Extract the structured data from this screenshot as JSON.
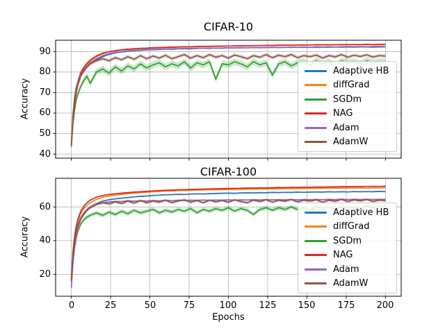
{
  "figure": {
    "background": "#ffffff"
  },
  "chart_data": [
    {
      "type": "line",
      "title": "CIFAR-10",
      "xlabel": "",
      "ylabel": "Accuracy",
      "xlim": [
        -10,
        210
      ],
      "ylim": [
        38,
        95.5
      ],
      "xticks": [
        0,
        25,
        50,
        75,
        100,
        125,
        150,
        175,
        200
      ],
      "yticks": [
        40,
        50,
        60,
        70,
        80,
        90
      ],
      "show_xtick_labels": false,
      "grid": true,
      "legend_position": "center right inside",
      "grid_color": "#b0b0b0",
      "x": [
        0,
        1,
        2,
        3,
        4,
        6,
        8,
        10,
        12,
        16,
        20,
        24,
        28,
        32,
        36,
        40,
        44,
        48,
        52,
        56,
        60,
        64,
        68,
        72,
        76,
        80,
        84,
        88,
        92,
        96,
        100,
        104,
        108,
        112,
        116,
        120,
        124,
        128,
        132,
        136,
        140,
        144,
        148,
        152,
        156,
        160,
        164,
        168,
        172,
        176,
        180,
        184,
        188,
        192,
        196,
        200
      ],
      "series": [
        {
          "name": "Adaptive HB",
          "color": "#1f77b4",
          "band": 0.3,
          "values": [
            44.2,
            57.0,
            65.0,
            70.0,
            73.5,
            78.0,
            80.5,
            82.5,
            84.0,
            86.0,
            87.5,
            88.6,
            89.3,
            89.8,
            90.1,
            90.4,
            90.6,
            90.8,
            90.9,
            91.0,
            91.2,
            91.1,
            91.3,
            91.4,
            91.3,
            91.5,
            91.6,
            91.5,
            91.7,
            91.6,
            91.8,
            91.7,
            91.9,
            91.8,
            92.0,
            91.9,
            92.0,
            92.1,
            92.0,
            92.1,
            92.2,
            92.1,
            92.2,
            92.1,
            92.3,
            92.2,
            92.3,
            92.2,
            92.3,
            92.4,
            92.3,
            92.4,
            92.3,
            92.4,
            92.5,
            92.4
          ]
        },
        {
          "name": "diffGrad",
          "color": "#ff7f0e",
          "band": 0.25,
          "values": [
            44.5,
            59.0,
            67.0,
            72.0,
            75.0,
            80.0,
            82.5,
            84.5,
            86.0,
            88.0,
            89.3,
            90.0,
            90.5,
            90.9,
            91.2,
            91.4,
            91.6,
            91.7,
            91.9,
            92.0,
            92.1,
            92.2,
            92.3,
            92.3,
            92.4,
            92.5,
            92.5,
            92.6,
            92.6,
            92.7,
            92.7,
            92.8,
            92.8,
            92.9,
            92.9,
            92.9,
            93.0,
            93.0,
            93.0,
            93.1,
            93.1,
            93.1,
            93.1,
            93.2,
            93.2,
            93.2,
            93.2,
            93.3,
            93.2,
            93.3,
            93.3,
            93.3,
            93.4,
            93.3,
            93.4,
            93.4
          ]
        },
        {
          "name": "SGDm",
          "color": "#2ca02c",
          "band": 1.6,
          "values": [
            43.8,
            54.0,
            61.0,
            66.0,
            69.0,
            73.0,
            76.0,
            78.0,
            74.5,
            80.0,
            81.5,
            79.5,
            82.5,
            80.5,
            83.0,
            81.5,
            84.0,
            82.0,
            83.5,
            84.5,
            82.5,
            84.0,
            83.0,
            85.0,
            82.0,
            84.5,
            83.5,
            85.0,
            76.5,
            84.0,
            83.5,
            85.0,
            84.0,
            82.5,
            85.0,
            83.5,
            84.5,
            78.5,
            84.0,
            85.0,
            83.0,
            84.5,
            85.0,
            83.5,
            85.5,
            84.0,
            85.0,
            83.0,
            85.5,
            84.5,
            85.0,
            84.0,
            85.5,
            84.5,
            85.0,
            84.8
          ]
        },
        {
          "name": "NAG",
          "color": "#d62728",
          "band": 0.25,
          "values": [
            44.0,
            58.0,
            66.5,
            71.5,
            74.5,
            79.5,
            82.0,
            84.0,
            85.5,
            87.6,
            89.0,
            89.9,
            90.4,
            90.8,
            91.1,
            91.3,
            91.5,
            91.6,
            91.8,
            91.9,
            92.0,
            92.1,
            92.2,
            92.3,
            92.3,
            92.4,
            92.5,
            92.5,
            92.6,
            92.6,
            92.7,
            92.7,
            92.8,
            92.8,
            92.9,
            92.9,
            93.0,
            93.0,
            93.1,
            93.1,
            93.1,
            93.2,
            93.2,
            93.2,
            93.3,
            93.3,
            93.3,
            93.3,
            93.4,
            93.4,
            93.4,
            93.4,
            93.5,
            93.4,
            93.5,
            93.5
          ]
        },
        {
          "name": "Adam",
          "color": "#9467bd",
          "band": 0.3,
          "values": [
            43.5,
            56.0,
            64.5,
            70.0,
            73.5,
            78.5,
            81.0,
            83.0,
            84.5,
            86.5,
            88.0,
            89.0,
            89.6,
            90.0,
            90.4,
            90.6,
            90.8,
            91.0,
            91.1,
            91.2,
            91.3,
            91.4,
            91.4,
            91.5,
            91.5,
            91.6,
            91.6,
            91.7,
            91.6,
            91.7,
            91.8,
            91.7,
            91.8,
            91.8,
            91.9,
            91.8,
            91.9,
            92.0,
            91.9,
            92.0,
            92.0,
            92.1,
            92.0,
            92.1,
            92.0,
            92.1,
            92.1,
            92.2,
            92.1,
            92.2,
            92.1,
            92.2,
            92.2,
            92.1,
            92.2,
            92.2
          ]
        },
        {
          "name": "AdamW",
          "color": "#8c564b",
          "band": 0.9,
          "values": [
            44.0,
            56.5,
            64.0,
            69.5,
            73.0,
            78.0,
            80.5,
            82.5,
            84.0,
            85.5,
            86.5,
            85.5,
            87.0,
            86.0,
            87.5,
            86.2,
            88.0,
            86.5,
            87.8,
            86.8,
            88.2,
            86.5,
            87.5,
            88.5,
            86.8,
            88.0,
            87.0,
            88.5,
            87.2,
            88.0,
            86.8,
            88.3,
            87.5,
            86.5,
            88.0,
            87.2,
            88.5,
            87.0,
            88.2,
            87.5,
            88.5,
            87.0,
            88.0,
            87.5,
            88.3,
            86.8,
            88.0,
            87.4,
            88.5,
            87.2,
            88.2,
            87.6,
            88.4,
            87.3,
            88.0,
            87.8
          ]
        }
      ]
    },
    {
      "type": "line",
      "title": "CIFAR-100",
      "xlabel": "Epochs",
      "ylabel": "Accuracy",
      "xlim": [
        -10,
        210
      ],
      "ylim": [
        7,
        77
      ],
      "xticks": [
        0,
        25,
        50,
        75,
        100,
        125,
        150,
        175,
        200
      ],
      "yticks": [
        20,
        40,
        60
      ],
      "show_xtick_labels": true,
      "grid": true,
      "legend_position": "center right inside",
      "grid_color": "#b0b0b0",
      "x": [
        0,
        1,
        2,
        3,
        4,
        6,
        8,
        10,
        12,
        16,
        20,
        24,
        28,
        32,
        36,
        40,
        44,
        48,
        52,
        56,
        60,
        64,
        68,
        72,
        76,
        80,
        84,
        88,
        92,
        96,
        100,
        104,
        108,
        112,
        116,
        120,
        124,
        128,
        132,
        136,
        140,
        144,
        148,
        152,
        156,
        160,
        164,
        168,
        172,
        176,
        180,
        184,
        188,
        192,
        196,
        200
      ],
      "series": [
        {
          "name": "Adaptive HB",
          "color": "#1f77b4",
          "band": 0.4,
          "values": [
            16.0,
            30.0,
            39.0,
            45.0,
            49.0,
            53.5,
            56.5,
            58.5,
            60.0,
            62.0,
            63.5,
            64.3,
            64.8,
            65.2,
            65.6,
            66.0,
            66.3,
            66.5,
            66.8,
            67.0,
            67.2,
            67.3,
            67.5,
            67.4,
            67.6,
            67.8,
            67.7,
            67.9,
            68.0,
            68.1,
            68.2,
            68.1,
            68.3,
            68.4,
            68.3,
            68.5,
            68.4,
            68.6,
            68.5,
            68.7,
            68.6,
            68.8,
            68.7,
            68.8,
            68.9,
            68.8,
            69.0,
            68.9,
            69.0,
            68.9,
            69.1,
            69.0,
            69.1,
            69.0,
            69.2,
            69.1
          ]
        },
        {
          "name": "diffGrad",
          "color": "#ff7f0e",
          "band": 0.4,
          "values": [
            17.0,
            32.0,
            41.0,
            47.0,
            51.0,
            56.0,
            59.0,
            61.0,
            62.5,
            64.5,
            65.8,
            66.5,
            67.0,
            67.5,
            67.9,
            68.2,
            68.5,
            68.7,
            69.0,
            69.2,
            69.4,
            69.5,
            69.7,
            69.8,
            69.9,
            70.0,
            70.1,
            70.2,
            70.2,
            70.3,
            70.4,
            70.5,
            70.5,
            70.6,
            70.6,
            70.7,
            70.7,
            70.8,
            70.8,
            70.9,
            70.9,
            71.0,
            71.0,
            71.0,
            71.1,
            71.1,
            71.1,
            71.2,
            71.2,
            71.2,
            71.2,
            71.3,
            71.2,
            71.3,
            71.3,
            71.4
          ]
        },
        {
          "name": "SGDm",
          "color": "#2ca02c",
          "band": 1.3,
          "values": [
            15.5,
            27.0,
            35.0,
            41.0,
            45.0,
            50.0,
            52.5,
            54.0,
            55.0,
            56.5,
            55.0,
            57.0,
            55.5,
            57.5,
            56.0,
            58.0,
            56.5,
            57.5,
            58.5,
            56.5,
            58.0,
            57.0,
            58.5,
            57.5,
            59.0,
            56.5,
            58.5,
            57.5,
            59.0,
            58.0,
            59.5,
            57.5,
            59.0,
            58.0,
            55.5,
            58.5,
            59.5,
            58.0,
            59.5,
            58.5,
            60.0,
            58.5,
            59.5,
            58.0,
            60.0,
            59.0,
            60.0,
            58.5,
            60.0,
            59.5,
            60.0,
            59.0,
            60.5,
            59.5,
            60.2,
            60.0
          ]
        },
        {
          "name": "NAG",
          "color": "#d62728",
          "band": 0.3,
          "values": [
            17.5,
            33.0,
            42.0,
            48.0,
            52.0,
            57.5,
            60.5,
            62.5,
            64.0,
            65.8,
            66.8,
            67.4,
            67.8,
            68.2,
            68.5,
            68.8,
            69.0,
            69.3,
            69.5,
            69.7,
            69.9,
            70.0,
            70.2,
            70.3,
            70.4,
            70.5,
            70.6,
            70.7,
            70.8,
            70.9,
            71.0,
            71.0,
            71.1,
            71.2,
            71.2,
            71.3,
            71.3,
            71.4,
            71.5,
            71.5,
            71.6,
            71.6,
            71.7,
            71.7,
            71.8,
            71.8,
            71.9,
            71.9,
            72.0,
            72.0,
            72.1,
            72.1,
            72.2,
            72.2,
            72.2,
            72.3
          ]
        },
        {
          "name": "Adam",
          "color": "#9467bd",
          "band": 0.5,
          "values": [
            12.0,
            26.0,
            36.0,
            43.0,
            47.5,
            52.5,
            55.5,
            58.0,
            59.5,
            61.5,
            62.5,
            63.0,
            63.3,
            63.2,
            63.6,
            63.4,
            63.7,
            63.5,
            63.8,
            63.6,
            63.9,
            63.7,
            64.0,
            63.8,
            64.0,
            63.9,
            64.1,
            63.9,
            64.1,
            64.0,
            64.2,
            64.0,
            64.2,
            64.1,
            64.3,
            64.1,
            64.3,
            64.2,
            64.3,
            64.2,
            64.4,
            64.2,
            64.4,
            64.3,
            64.4,
            64.3,
            64.5,
            64.3,
            64.5,
            64.4,
            64.5,
            64.4,
            64.5,
            64.4,
            64.5,
            64.5
          ]
        },
        {
          "name": "AdamW",
          "color": "#8c564b",
          "band": 0.8,
          "values": [
            16.5,
            29.0,
            38.0,
            44.5,
            48.5,
            53.0,
            56.0,
            58.0,
            59.5,
            61.5,
            62.5,
            61.8,
            63.0,
            62.0,
            63.5,
            62.2,
            63.8,
            62.5,
            63.5,
            62.8,
            64.0,
            62.5,
            63.5,
            64.2,
            62.8,
            63.8,
            62.5,
            64.0,
            63.0,
            63.8,
            62.8,
            64.2,
            63.2,
            62.5,
            64.0,
            63.2,
            64.3,
            62.8,
            64.0,
            63.4,
            64.4,
            63.0,
            64.0,
            63.5,
            64.2,
            62.8,
            64.0,
            63.4,
            64.5,
            63.2,
            64.2,
            63.6,
            64.4,
            63.3,
            64.0,
            63.8
          ]
        }
      ]
    }
  ]
}
